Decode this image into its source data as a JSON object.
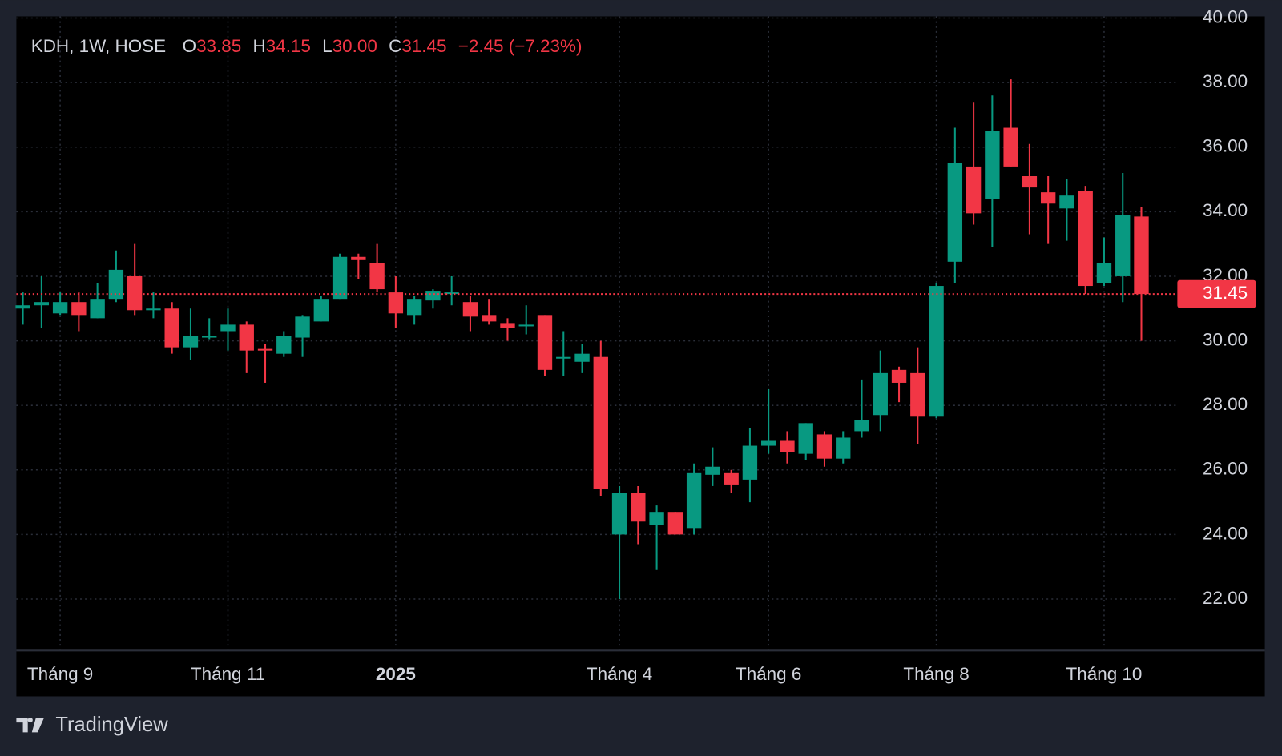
{
  "chart_data": {
    "type": "candlestick",
    "legend": {
      "symbol": "KDH, 1W, HOSE",
      "items": [
        {
          "label": "O",
          "value": "33.85"
        },
        {
          "label": "H",
          "value": "34.15"
        },
        {
          "label": "L",
          "value": "30.00"
        },
        {
          "label": "C",
          "value": "31.45"
        }
      ],
      "change": "−2.45 (−7.23%)"
    },
    "categories": [
      null,
      null,
      "Tháng 9",
      null,
      null,
      null,
      null,
      null,
      null,
      null,
      null,
      "Tháng 11",
      null,
      null,
      null,
      null,
      null,
      null,
      null,
      null,
      "2025",
      null,
      null,
      null,
      null,
      null,
      null,
      null,
      null,
      null,
      null,
      null,
      "Tháng 4",
      null,
      null,
      null,
      null,
      null,
      null,
      null,
      "Tháng 6",
      null,
      null,
      null,
      null,
      null,
      null,
      null,
      null,
      "Tháng 8",
      null,
      null,
      null,
      null,
      null,
      null,
      null,
      null,
      "Tháng 10",
      null,
      null
    ],
    "open": [
      31.0,
      31.1,
      30.85,
      31.2,
      30.7,
      31.3,
      32.0,
      30.95,
      31.0,
      29.8,
      30.1,
      30.3,
      30.5,
      29.75,
      29.6,
      30.1,
      30.6,
      31.3,
      32.6,
      32.4,
      31.5,
      30.8,
      31.25,
      31.45,
      31.2,
      30.8,
      30.55,
      30.45,
      30.8,
      29.45,
      29.35,
      29.5,
      24.0,
      25.3,
      24.3,
      24.7,
      24.2,
      25.85,
      25.9,
      25.7,
      26.75,
      26.9,
      26.5,
      27.1,
      26.35,
      27.2,
      27.7,
      29.1,
      29.0,
      27.65,
      32.45,
      35.4,
      34.4,
      36.6,
      35.1,
      34.6,
      34.1,
      34.65,
      31.8,
      32.0,
      33.85
    ],
    "high": [
      31.5,
      32.0,
      31.5,
      31.5,
      31.8,
      32.8,
      33.0,
      31.5,
      31.2,
      31.0,
      30.7,
      31.0,
      30.6,
      29.9,
      30.3,
      30.8,
      31.4,
      32.7,
      32.7,
      33.0,
      32.0,
      31.4,
      31.6,
      32.0,
      31.4,
      31.3,
      30.7,
      31.1,
      30.8,
      30.3,
      29.9,
      30.0,
      25.5,
      25.5,
      24.9,
      24.7,
      26.2,
      26.7,
      26.0,
      27.3,
      28.5,
      27.2,
      27.45,
      27.2,
      27.2,
      28.8,
      29.7,
      29.2,
      29.8,
      31.8,
      36.6,
      37.4,
      37.6,
      38.1,
      36.1,
      35.1,
      35.0,
      34.8,
      33.2,
      35.2,
      34.15
    ],
    "low": [
      30.5,
      30.4,
      30.8,
      30.3,
      30.7,
      31.2,
      30.8,
      30.7,
      29.6,
      29.4,
      30.05,
      29.7,
      29.0,
      28.7,
      29.5,
      29.5,
      30.6,
      31.3,
      31.9,
      31.5,
      30.4,
      30.5,
      31.0,
      31.1,
      30.3,
      30.5,
      30.0,
      30.2,
      28.9,
      28.9,
      29.0,
      25.2,
      22.0,
      23.7,
      22.9,
      24.0,
      24.0,
      25.5,
      25.3,
      25.0,
      26.5,
      26.2,
      26.3,
      26.1,
      26.2,
      27.0,
      27.2,
      28.1,
      26.8,
      27.6,
      31.8,
      33.6,
      32.9,
      35.4,
      33.3,
      33.0,
      33.1,
      31.45,
      31.7,
      31.2,
      30.0
    ],
    "close": [
      31.1,
      31.2,
      31.2,
      30.8,
      31.3,
      32.2,
      30.95,
      31.0,
      29.8,
      30.15,
      30.15,
      30.5,
      29.7,
      29.7,
      30.15,
      30.75,
      31.3,
      32.6,
      32.5,
      31.6,
      30.85,
      31.3,
      31.55,
      31.5,
      30.75,
      30.6,
      30.4,
      30.5,
      29.1,
      29.5,
      29.6,
      25.4,
      25.3,
      24.4,
      24.7,
      24.0,
      25.9,
      26.1,
      25.55,
      26.75,
      26.9,
      26.55,
      27.45,
      26.35,
      27.0,
      27.55,
      29.0,
      28.7,
      27.65,
      31.7,
      35.5,
      33.95,
      36.5,
      35.4,
      34.75,
      34.25,
      34.5,
      31.7,
      32.4,
      33.9,
      31.45
    ],
    "up_color": "#089981",
    "down_color": "#f23645",
    "ylim": [
      20.43,
      40
    ],
    "yticks": [
      {
        "value": 22,
        "label": "22.00"
      },
      {
        "value": 24,
        "label": "24.00"
      },
      {
        "value": 26,
        "label": "26.00"
      },
      {
        "value": 28,
        "label": "28.00"
      },
      {
        "value": 30,
        "label": "30.00"
      },
      {
        "value": 32,
        "label": "32.00"
      },
      {
        "value": 34,
        "label": "34.00"
      },
      {
        "value": 36,
        "label": "36.00"
      },
      {
        "value": 38,
        "label": "38.00"
      },
      {
        "value": 40,
        "label": "40.00"
      }
    ],
    "last_price": {
      "value": 31.45,
      "label": "31.45"
    },
    "grid": true
  },
  "footer": {
    "brand": "TradingView"
  }
}
